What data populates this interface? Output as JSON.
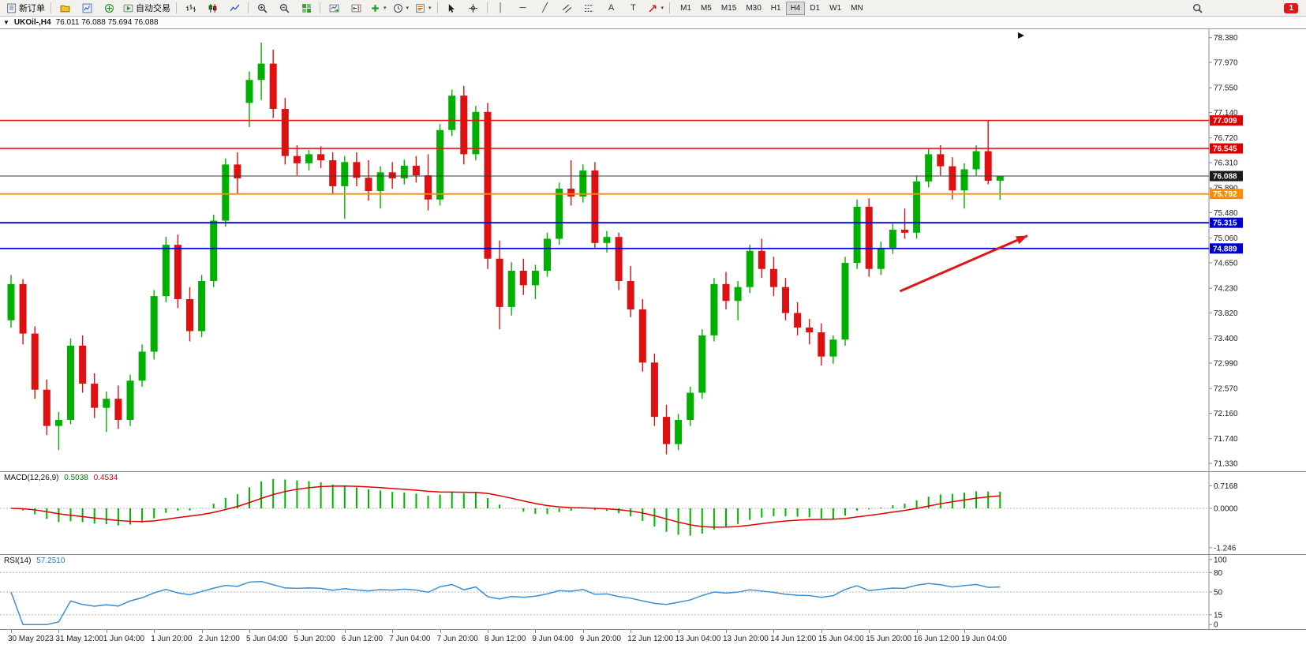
{
  "toolbar": {
    "caret_glyph": "▾",
    "notification_badge": "1",
    "active_timeframe": "H4",
    "timeframes": [
      "M1",
      "M5",
      "M15",
      "M30",
      "H1",
      "H4",
      "D1",
      "W1",
      "MN"
    ],
    "items": [
      {
        "name": "new-order-button",
        "icon": "doc",
        "label": "新订单"
      },
      {
        "sep": true
      },
      {
        "name": "profiles-button",
        "icon": "folder"
      },
      {
        "name": "data-window-button",
        "icon": "chartwin"
      },
      {
        "name": "navigator-button",
        "icon": "compass"
      },
      {
        "name": "auto-trading-button",
        "icon": "play",
        "label": "自动交易"
      },
      {
        "sep": true
      },
      {
        "name": "bar-chart-button",
        "icon": "bars"
      },
      {
        "name": "candlestick-chart-button",
        "icon": "candles"
      },
      {
        "name": "line-chart-button",
        "icon": "linechart"
      },
      {
        "sep": true
      },
      {
        "name": "zoom-in-button",
        "icon": "zoomin"
      },
      {
        "name": "zoom-out-button",
        "icon": "zoomout"
      },
      {
        "name": "tile-windows-button",
        "icon": "tiles"
      },
      {
        "sep": true
      },
      {
        "name": "auto-scroll-button",
        "icon": "autoscroll"
      },
      {
        "name": "chart-shift-button",
        "icon": "chartshift"
      },
      {
        "name": "add-indicator-button",
        "icon": "plusgreen",
        "caret": true
      },
      {
        "name": "periods-button",
        "icon": "clock",
        "caret": true
      },
      {
        "name": "templates-button",
        "icon": "template",
        "caret": true
      },
      {
        "sep": true
      },
      {
        "name": "cursor-button",
        "icon": "cursor"
      },
      {
        "name": "crosshair-button",
        "icon": "crosshair"
      },
      {
        "sep": true
      },
      {
        "name": "vertical-line-button",
        "glyph": "│"
      },
      {
        "name": "horizontal-line-button",
        "glyph": "─"
      },
      {
        "name": "trendline-button",
        "glyph": "╱"
      },
      {
        "name": "channel-button",
        "icon": "channel"
      },
      {
        "name": "fibonacci-button",
        "icon": "fibo"
      },
      {
        "name": "text-button",
        "glyph": "A"
      },
      {
        "name": "label-button",
        "glyph": "T"
      },
      {
        "name": "arrows-button",
        "icon": "arrowtool",
        "caret": true
      },
      {
        "sep": true
      },
      {
        "timeframes": true
      },
      {
        "spacer": true
      },
      {
        "name": "symbol-search-button",
        "icon": "search"
      }
    ]
  },
  "chart_window": {
    "menu_caret": "▼",
    "symbol_title": "UKOil-,H4",
    "ohlc": "76.011 76.088 75.694 76.088"
  },
  "chart_data": {
    "type": "candlestick",
    "title": "UKOil-,H4",
    "symbol": "UKOil-",
    "timeframe": "H4",
    "ohlc_display": {
      "open": "76.011",
      "high": "76.088",
      "low": "75.694",
      "close": "76.088"
    },
    "price_range": [
      71.2,
      78.52
    ],
    "price_axis_labels": [
      "78.380",
      "77.970",
      "77.550",
      "77.140",
      "76.720",
      "76.310",
      "75.890",
      "75.480",
      "75.060",
      "74.650",
      "74.230",
      "73.820",
      "73.400",
      "72.990",
      "72.570",
      "72.160",
      "71.740",
      "71.330"
    ],
    "time_axis_labels": [
      "30 May 2023",
      "31 May 12:00",
      "1 Jun 04:00",
      "1 Jun 20:00",
      "2 Jun 12:00",
      "5 Jun 04:00",
      "5 Jun 20:00",
      "6 Jun 12:00",
      "7 Jun 04:00",
      "7 Jun 20:00",
      "8 Jun 12:00",
      "9 Jun 04:00",
      "9 Jun 20:00",
      "12 Jun 12:00",
      "13 Jun 04:00",
      "13 Jun 20:00",
      "14 Jun 12:00",
      "15 Jun 04:00",
      "15 Jun 20:00",
      "16 Jun 12:00",
      "19 Jun 04:00"
    ],
    "candles": [
      [
        73.7,
        74.45,
        73.58,
        74.3
      ],
      [
        74.3,
        74.38,
        73.3,
        73.48
      ],
      [
        73.48,
        73.6,
        72.4,
        72.55
      ],
      [
        72.55,
        72.72,
        71.8,
        71.95
      ],
      [
        71.95,
        72.18,
        71.55,
        72.05
      ],
      [
        72.05,
        73.4,
        71.98,
        73.28
      ],
      [
        73.28,
        73.45,
        72.5,
        72.65
      ],
      [
        72.65,
        72.82,
        72.08,
        72.25
      ],
      [
        72.25,
        72.52,
        71.85,
        72.4
      ],
      [
        72.4,
        72.62,
        71.9,
        72.05
      ],
      [
        72.05,
        72.8,
        71.95,
        72.7
      ],
      [
        72.7,
        73.3,
        72.6,
        73.18
      ],
      [
        73.18,
        74.2,
        73.05,
        74.1
      ],
      [
        74.1,
        75.08,
        74.0,
        74.95
      ],
      [
        74.95,
        75.12,
        73.9,
        74.05
      ],
      [
        74.05,
        74.25,
        73.35,
        73.52
      ],
      [
        73.52,
        74.45,
        73.42,
        74.35
      ],
      [
        74.35,
        75.45,
        74.25,
        75.35
      ],
      [
        75.35,
        76.38,
        75.25,
        76.28
      ],
      [
        76.28,
        76.48,
        75.8,
        76.05
      ],
      [
        77.3,
        77.82,
        76.9,
        77.68
      ],
      [
        77.68,
        78.3,
        77.35,
        77.95
      ],
      [
        77.95,
        78.18,
        77.05,
        77.2
      ],
      [
        77.2,
        77.38,
        76.28,
        76.42
      ],
      [
        76.42,
        76.6,
        76.1,
        76.3
      ],
      [
        76.3,
        76.52,
        76.18,
        76.45
      ],
      [
        76.45,
        76.58,
        76.22,
        76.35
      ],
      [
        76.35,
        76.48,
        75.78,
        75.92
      ],
      [
        75.92,
        76.42,
        75.38,
        76.32
      ],
      [
        76.32,
        76.48,
        75.92,
        76.06
      ],
      [
        76.06,
        76.35,
        75.68,
        75.84
      ],
      [
        75.84,
        76.25,
        75.55,
        76.15
      ],
      [
        76.15,
        76.32,
        75.88,
        76.05
      ],
      [
        76.05,
        76.36,
        75.95,
        76.26
      ],
      [
        76.26,
        76.42,
        75.98,
        76.1
      ],
      [
        76.1,
        76.45,
        75.52,
        75.7
      ],
      [
        75.7,
        76.95,
        75.6,
        76.85
      ],
      [
        76.85,
        77.52,
        76.75,
        77.42
      ],
      [
        77.42,
        77.58,
        76.28,
        76.45
      ],
      [
        76.45,
        77.25,
        76.35,
        77.15
      ],
      [
        77.15,
        77.3,
        74.55,
        74.72
      ],
      [
        74.72,
        75.02,
        73.55,
        73.92
      ],
      [
        73.92,
        74.66,
        73.78,
        74.52
      ],
      [
        74.52,
        74.72,
        74.12,
        74.28
      ],
      [
        74.28,
        74.62,
        74.05,
        74.52
      ],
      [
        74.52,
        75.15,
        74.42,
        75.05
      ],
      [
        75.05,
        75.98,
        74.95,
        75.88
      ],
      [
        75.88,
        76.35,
        75.6,
        75.75
      ],
      [
        75.75,
        76.28,
        75.65,
        76.18
      ],
      [
        76.18,
        76.32,
        74.88,
        74.98
      ],
      [
        74.98,
        75.18,
        74.82,
        75.08
      ],
      [
        75.08,
        75.15,
        74.2,
        74.35
      ],
      [
        74.35,
        74.6,
        73.75,
        73.88
      ],
      [
        73.88,
        74.05,
        72.85,
        73.0
      ],
      [
        73.0,
        73.15,
        71.95,
        72.1
      ],
      [
        72.1,
        72.3,
        71.48,
        71.65
      ],
      [
        71.65,
        72.15,
        71.55,
        72.05
      ],
      [
        72.05,
        72.6,
        71.95,
        72.5
      ],
      [
        72.5,
        73.55,
        72.4,
        73.45
      ],
      [
        73.45,
        74.4,
        73.35,
        74.3
      ],
      [
        74.3,
        74.5,
        73.88,
        74.02
      ],
      [
        74.02,
        74.35,
        73.7,
        74.25
      ],
      [
        74.25,
        74.95,
        74.15,
        74.85
      ],
      [
        74.85,
        75.05,
        74.4,
        74.55
      ],
      [
        74.55,
        74.75,
        74.1,
        74.25
      ],
      [
        74.25,
        74.4,
        73.7,
        73.82
      ],
      [
        73.82,
        74.0,
        73.45,
        73.58
      ],
      [
        73.58,
        73.72,
        73.3,
        73.5
      ],
      [
        73.5,
        73.65,
        72.95,
        73.1
      ],
      [
        73.1,
        73.45,
        72.98,
        73.38
      ],
      [
        73.38,
        74.75,
        73.28,
        74.65
      ],
      [
        74.65,
        75.7,
        74.55,
        75.58
      ],
      [
        75.58,
        75.72,
        74.42,
        74.55
      ],
      [
        74.55,
        75.0,
        74.45,
        74.9
      ],
      [
        74.9,
        75.3,
        74.8,
        75.2
      ],
      [
        75.2,
        75.55,
        75.05,
        75.15
      ],
      [
        75.15,
        76.1,
        75.05,
        76.0
      ],
      [
        76.0,
        76.55,
        75.9,
        76.45
      ],
      [
        76.45,
        76.6,
        76.1,
        76.25
      ],
      [
        76.25,
        76.4,
        75.7,
        75.85
      ],
      [
        75.85,
        76.3,
        75.55,
        76.2
      ],
      [
        76.2,
        76.6,
        76.1,
        76.5
      ],
      [
        76.5,
        77.0,
        75.95,
        76.01
      ],
      [
        76.011,
        76.088,
        75.694,
        76.088
      ]
    ],
    "hlines": [
      {
        "price": 77.009,
        "tag": "77.009",
        "color": "#ee1111",
        "tag_bg": "#dd0000",
        "width": 1.6
      },
      {
        "price": 76.545,
        "tag": "76.545",
        "color": "#ee1111",
        "tag_bg": "#dd0000",
        "width": 1.6
      },
      {
        "price": 76.088,
        "tag": "76.088",
        "color": "#3a3a3a",
        "tag_bg": "#1a1a1a",
        "width": 1
      },
      {
        "price": 75.792,
        "tag": "75.792",
        "color": "#ff8c00",
        "tag_bg": "#ff8c00",
        "width": 1.8
      },
      {
        "price": 75.315,
        "tag": "75.315",
        "color": "#0000dd",
        "tag_bg": "#0000cc",
        "width": 1.8
      },
      {
        "price": 74.889,
        "tag": "74.889",
        "color": "#0000dd",
        "tag_bg": "#0000cc",
        "width": 1.8
      }
    ],
    "annotations": [
      {
        "type": "arrow",
        "from_bar": 74.6,
        "from_price": 74.18,
        "to_bar": 85.3,
        "to_price": 75.1,
        "color": "#e41414"
      }
    ],
    "indicators": [
      {
        "name": "MACD",
        "label": "MACD(12,26,9)",
        "value_main": "0.5038",
        "value_signal": "0.4534",
        "params": [
          12,
          26,
          9
        ],
        "range": [
          -1.45,
          1.15
        ],
        "axis_labels": [
          {
            "v": 0.7168,
            "text": "0.7168"
          },
          {
            "v": 0,
            "text": "0.0000"
          },
          {
            "v": -1.246,
            "text": "-1.246"
          }
        ],
        "colors": {
          "histogram": "#00b400",
          "signal": "#e00000"
        }
      },
      {
        "name": "RSI",
        "label": "RSI(14)",
        "value_main": "57.2510",
        "params": [
          14
        ],
        "levels": [
          {
            "v": 100,
            "text": "100",
            "dashed": false
          },
          {
            "v": 80,
            "text": "80",
            "dashed": true
          },
          {
            "v": 50,
            "text": "50",
            "dashed": true
          },
          {
            "v": 15,
            "text": "15",
            "dashed": true
          },
          {
            "v": 0,
            "text": "0",
            "dashed": false
          }
        ],
        "colors": {
          "line": "#3d8fd1"
        }
      }
    ],
    "colors": {
      "up": "#00b000",
      "down": "#dd1111",
      "bg": "#ffffff",
      "axis_text": "#1a1a1a"
    }
  }
}
